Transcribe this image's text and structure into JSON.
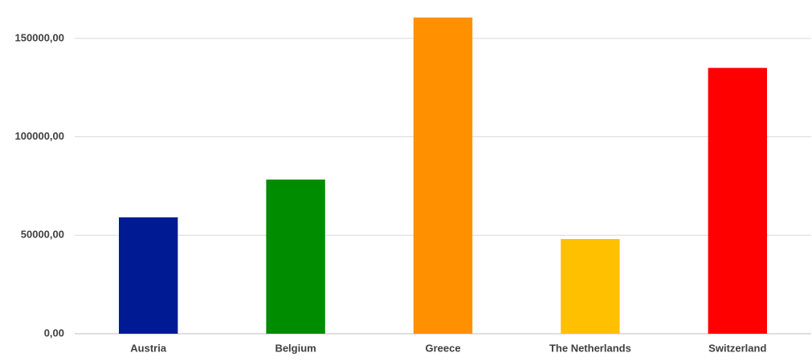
{
  "chart_data": {
    "type": "bar",
    "categories": [
      "Austria",
      "Belgium",
      "Greece",
      "The Netherlands",
      "Switzerland"
    ],
    "values": [
      59100,
      78300,
      160600,
      48100,
      135000
    ],
    "colors": [
      "#001a94",
      "#008c00",
      "#ff9100",
      "#ffc000",
      "#ff0000"
    ],
    "ylim": [
      0,
      165000
    ],
    "yticks": [
      {
        "value": 0,
        "label": "0,00"
      },
      {
        "value": 50000,
        "label": "50000,00"
      },
      {
        "value": 100000,
        "label": "100000,00"
      },
      {
        "value": 150000,
        "label": "150000,00"
      }
    ],
    "grid": true
  }
}
